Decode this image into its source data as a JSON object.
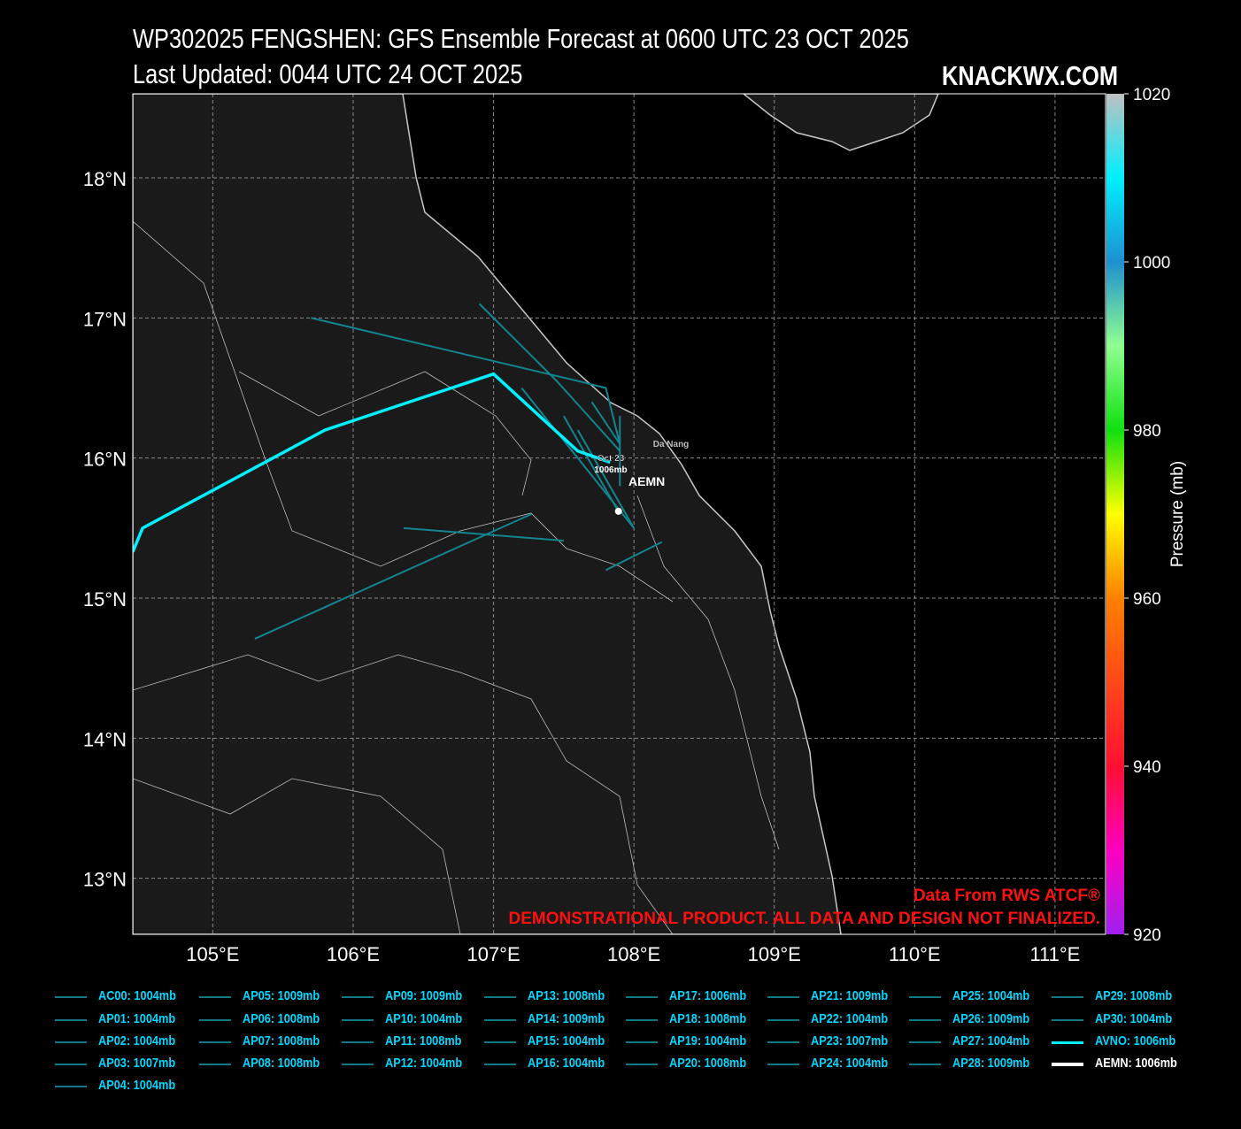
{
  "header": {
    "title": "WP302025 FENGSHEN: GFS Ensemble Forecast at 0600 UTC 23 OCT 2025",
    "updated": "Last Updated: 0044 UTC 24 OCT 2025",
    "brand": "KNACKWX.COM"
  },
  "footer": {
    "source": "Data From RWS ATCF®",
    "disclaimer": "DEMONSTRATIONAL PRODUCT. ALL DATA AND DESIGN NOT FINALIZED."
  },
  "colors": {
    "ensemble": "#12858f",
    "avno": "#00f0ff",
    "aemn": "#ffffff",
    "land": "#1a1a1a",
    "coast": "#c8c8c8",
    "warning": "#ff1010"
  },
  "chart_data": {
    "type": "map",
    "lon_range": [
      104.43,
      111.36
    ],
    "lat_range": [
      12.6,
      18.6
    ],
    "lon_ticks": [
      {
        "v": 105,
        "label": "105°E"
      },
      {
        "v": 106,
        "label": "106°E"
      },
      {
        "v": 107,
        "label": "107°E"
      },
      {
        "v": 108,
        "label": "108°E"
      },
      {
        "v": 109,
        "label": "109°E"
      },
      {
        "v": 110,
        "label": "110°E"
      },
      {
        "v": 111,
        "label": "111°E"
      }
    ],
    "lat_ticks": [
      {
        "v": 18,
        "label": "18°N"
      },
      {
        "v": 17,
        "label": "17°N"
      },
      {
        "v": 16,
        "label": "16°N"
      },
      {
        "v": 15,
        "label": "15°N"
      },
      {
        "v": 14,
        "label": "14°N"
      },
      {
        "v": 13,
        "label": "13°N"
      }
    ],
    "colorbar": {
      "label": "Pressure (mb)",
      "range": [
        920,
        1020
      ],
      "ticks": [
        "1020",
        "1000",
        "980",
        "960",
        "940",
        "920"
      ]
    },
    "place_label": "Da Nang",
    "storm_label": {
      "date": "Oct 23",
      "pressure": "1006mb"
    },
    "aemn_label": "AEMN",
    "aemn_point": [
      107.89,
      15.62
    ],
    "avno_track": [
      [
        107.83,
        15.97
      ],
      [
        107.6,
        16.05
      ],
      [
        107.0,
        16.6
      ],
      [
        105.8,
        16.2
      ],
      [
        104.5,
        15.5
      ],
      [
        104.43,
        15.33
      ]
    ],
    "ensemble_tracks": [
      [
        [
          107.9,
          16.1
        ],
        [
          107.8,
          16.5
        ],
        [
          107.6,
          16.55
        ],
        [
          105.7,
          17.0
        ]
      ],
      [
        [
          107.9,
          16.05
        ],
        [
          107.45,
          16.55
        ],
        [
          106.9,
          17.1
        ]
      ],
      [
        [
          107.5,
          15.41
        ],
        [
          106.36,
          15.5
        ]
      ],
      [
        [
          107.27,
          15.6
        ],
        [
          105.3,
          14.71
        ]
      ],
      [
        [
          107.8,
          15.2
        ],
        [
          108.2,
          15.4
        ]
      ],
      [
        [
          108.0,
          15.5
        ],
        [
          107.2,
          16.5
        ]
      ],
      [
        [
          107.9,
          15.6
        ],
        [
          107.5,
          16.3
        ]
      ],
      [
        [
          108.0,
          15.5
        ],
        [
          107.6,
          16.2
        ]
      ],
      [
        [
          107.9,
          16.1
        ],
        [
          107.7,
          16.4
        ]
      ],
      [
        [
          107.9,
          15.8
        ],
        [
          107.9,
          16.3
        ]
      ]
    ]
  },
  "legend": [
    {
      "label": "AC00: 1004mb",
      "kind": "ens"
    },
    {
      "label": "AP01: 1004mb",
      "kind": "ens"
    },
    {
      "label": "AP02: 1004mb",
      "kind": "ens"
    },
    {
      "label": "AP03: 1007mb",
      "kind": "ens"
    },
    {
      "label": "AP04: 1004mb",
      "kind": "ens"
    },
    {
      "label": "AP05: 1009mb",
      "kind": "ens"
    },
    {
      "label": "AP06: 1008mb",
      "kind": "ens"
    },
    {
      "label": "AP07: 1008mb",
      "kind": "ens"
    },
    {
      "label": "AP08: 1008mb",
      "kind": "ens"
    },
    {
      "label": "AP09: 1009mb",
      "kind": "ens"
    },
    {
      "label": "AP10: 1004mb",
      "kind": "ens"
    },
    {
      "label": "AP11: 1008mb",
      "kind": "ens"
    },
    {
      "label": "AP12: 1004mb",
      "kind": "ens"
    },
    {
      "label": "AP13: 1008mb",
      "kind": "ens"
    },
    {
      "label": "AP14: 1009mb",
      "kind": "ens"
    },
    {
      "label": "AP15: 1004mb",
      "kind": "ens"
    },
    {
      "label": "AP16: 1004mb",
      "kind": "ens"
    },
    {
      "label": "AP17: 1006mb",
      "kind": "ens"
    },
    {
      "label": "AP18: 1008mb",
      "kind": "ens"
    },
    {
      "label": "AP19: 1004mb",
      "kind": "ens"
    },
    {
      "label": "AP20: 1008mb",
      "kind": "ens"
    },
    {
      "label": "AP21: 1009mb",
      "kind": "ens"
    },
    {
      "label": "AP22: 1004mb",
      "kind": "ens"
    },
    {
      "label": "AP23: 1007mb",
      "kind": "ens"
    },
    {
      "label": "AP24: 1004mb",
      "kind": "ens"
    },
    {
      "label": "AP25: 1004mb",
      "kind": "ens"
    },
    {
      "label": "AP26: 1009mb",
      "kind": "ens"
    },
    {
      "label": "AP27: 1004mb",
      "kind": "ens"
    },
    {
      "label": "AP28: 1009mb",
      "kind": "ens"
    },
    {
      "label": "AP29: 1008mb",
      "kind": "ens"
    },
    {
      "label": "AP30: 1004mb",
      "kind": "ens"
    },
    {
      "label": "AVNO: 1006mb",
      "kind": "avno"
    },
    {
      "label": "AEMN: 1006mb",
      "kind": "aemn"
    }
  ]
}
